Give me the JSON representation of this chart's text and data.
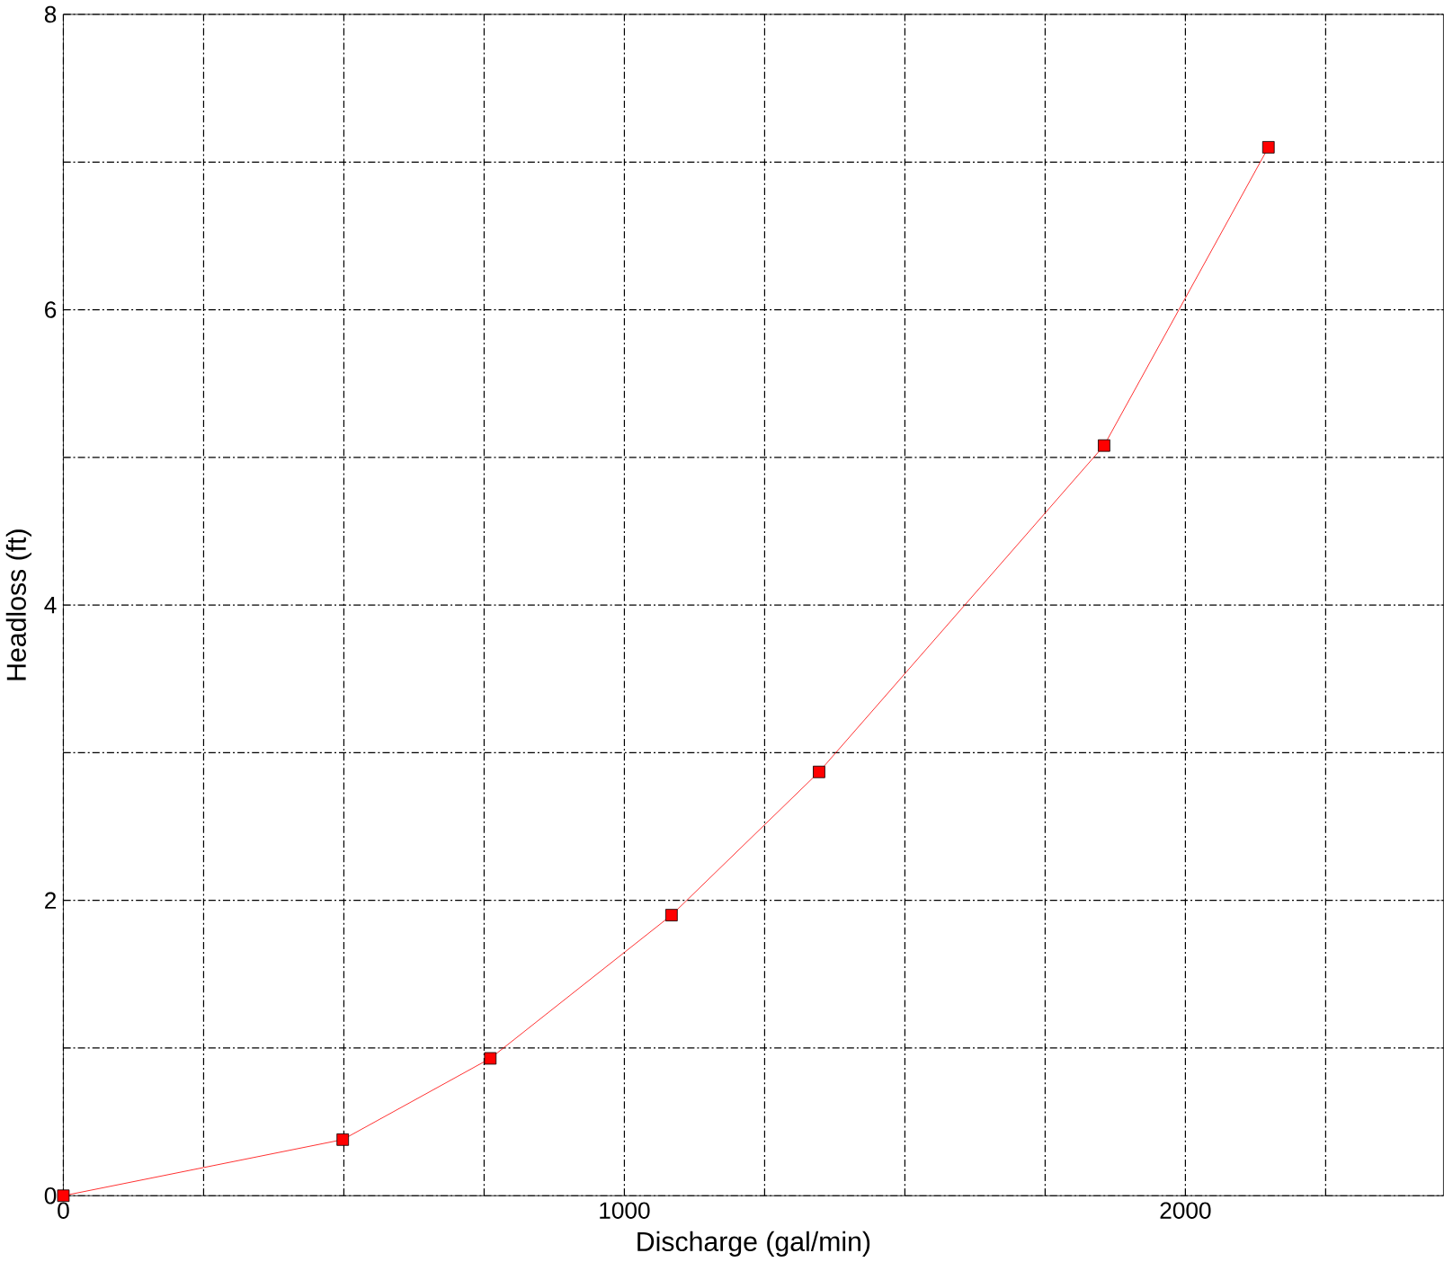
{
  "chart_data": {
    "type": "line",
    "xlabel": "Discharge (gal/min)",
    "ylabel": "Headloss (ft)",
    "x": [
      0,
      498,
      761,
      1084,
      1347,
      1855,
      2148
    ],
    "series": [
      {
        "color": "#ff0000",
        "values": [
          0,
          0.38,
          0.93,
          1.9,
          2.87,
          5.08,
          7.1
        ]
      }
    ],
    "xlim": [
      0,
      2460
    ],
    "ylim": [
      0,
      8
    ],
    "xticks": [
      0,
      {
        "value": 250,
        "label": null
      },
      {
        "value": 500,
        "label": null
      },
      {
        "value": 750,
        "label": null
      },
      1000,
      {
        "value": 1250,
        "label": null
      },
      {
        "value": 1500,
        "label": null
      },
      {
        "value": 1750,
        "label": null
      },
      2000,
      {
        "value": 2250,
        "label": null
      }
    ],
    "yticks": [
      0,
      {
        "value": 1,
        "label": null
      },
      2,
      {
        "value": 3,
        "label": null
      },
      4,
      {
        "value": 5,
        "label": null
      },
      6,
      {
        "value": 7,
        "label": null
      },
      8
    ],
    "grid": true,
    "marker": "square",
    "line_style": "solid"
  }
}
